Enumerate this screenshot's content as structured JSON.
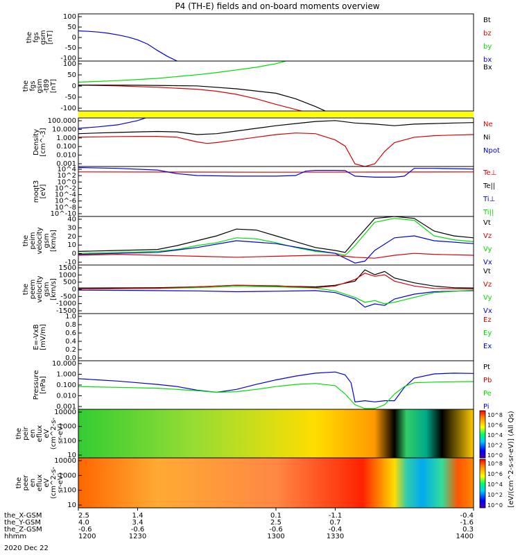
{
  "title": "P4 (TH-E) fields and on-board moments overview",
  "date_label": "2020 Dec 22",
  "colors": {
    "black": "#000000",
    "red": "#dd0000",
    "green": "#00dd00",
    "blue": "#0000dd",
    "yellow": "#ffff00"
  },
  "chart_data": [
    {
      "type": "line",
      "name": "fgs_gsm",
      "ylabel": [
        "the",
        "fgs",
        "gsm",
        "[nT]"
      ],
      "ylim": [
        -100,
        100
      ],
      "yticks": [
        "100",
        "50",
        "0",
        "-50",
        "-100"
      ],
      "legend": [
        {
          "label": "Bt",
          "color": "#000000"
        },
        {
          "label": "bz",
          "color": "#dd0000"
        },
        {
          "label": "by",
          "color": "#00dd00"
        },
        {
          "label": "bx",
          "color": "#0000dd"
        }
      ],
      "series": [
        {
          "name": "bx",
          "color": "#0000dd",
          "x": [
            1200,
            1205,
            1210,
            1215,
            1220,
            1225,
            1230,
            1235,
            1240,
            1245,
            1250
          ],
          "y": [
            28,
            26,
            23,
            18,
            11,
            2,
            -10,
            -28,
            -55,
            -80,
            -100
          ]
        }
      ]
    },
    {
      "type": "line",
      "name": "fgs_gsm_t89",
      "ylabel": [
        "the",
        "fgs",
        "gsm",
        "-t89",
        "[nT]"
      ],
      "ylim": [
        -125,
        100
      ],
      "yticks": [
        "100",
        "50",
        "0",
        "-50",
        "-100"
      ],
      "legend": [
        {
          "label": "Bx",
          "color": "#000000"
        }
      ],
      "series": [
        {
          "name": "green",
          "color": "#00dd00",
          "x": [
            1200,
            1210,
            1220,
            1230,
            1240,
            1250,
            1260,
            1270,
            1280,
            1290,
            1300,
            1305
          ],
          "y": [
            5,
            8,
            12,
            17,
            22,
            30,
            38,
            48,
            60,
            72,
            88,
            100
          ]
        },
        {
          "name": "red",
          "color": "#dd0000",
          "x": [
            1200,
            1220,
            1240,
            1260,
            1270,
            1280,
            1290,
            1300,
            1310,
            1313
          ],
          "y": [
            -8,
            -12,
            -18,
            -27,
            -36,
            -50,
            -70,
            -95,
            -118,
            -125
          ]
        },
        {
          "name": "black",
          "color": "#000000",
          "x": [
            1200,
            1230,
            1260,
            1280,
            1300,
            1310,
            1320,
            1325
          ],
          "y": [
            -8,
            -9,
            -12,
            -25,
            -45,
            -70,
            -105,
            -125
          ]
        }
      ]
    },
    {
      "type": "line",
      "name": "density",
      "ylabel": [
        "Density",
        "[cm^-3]"
      ],
      "ylog": [
        0.001,
        300
      ],
      "yticks": [
        "100.000",
        "10.000",
        "1.000",
        "0.100",
        "0.010",
        "0.001"
      ],
      "legend": [
        {
          "label": "Ne",
          "color": "#dd0000"
        },
        {
          "label": "Ni",
          "color": "#000000"
        },
        {
          "label": "Npot",
          "color": "#0000dd"
        }
      ],
      "series": [
        {
          "name": "Ni",
          "color": "#000000",
          "x": [
            1200,
            1210,
            1220,
            1230,
            1240,
            1250,
            1260,
            1270,
            1280,
            1290,
            1300,
            1310,
            1320,
            1330,
            1340,
            1350,
            1360,
            1370,
            1380,
            1390,
            1400
          ],
          "y": [
            5,
            6,
            7,
            8,
            9,
            8,
            4,
            5,
            10,
            20,
            40,
            70,
            120,
            150,
            80,
            60,
            40,
            60,
            70,
            80,
            90
          ]
        },
        {
          "name": "Ne",
          "color": "#dd0000",
          "x": [
            1200,
            1210,
            1220,
            1230,
            1240,
            1250,
            1260,
            1265,
            1270,
            1280,
            1290,
            1300,
            1310,
            1320,
            1330,
            1335,
            1340,
            1345,
            1350,
            1355,
            1360,
            1370,
            1380,
            1390,
            1400
          ],
          "y": [
            2,
            2.2,
            2.4,
            2.5,
            2.5,
            2,
            0.6,
            0.4,
            0.5,
            1,
            2,
            4,
            6,
            5,
            1,
            0.2,
            0.002,
            0.001,
            0.002,
            0.05,
            0.5,
            2,
            3,
            3.5,
            4
          ]
        },
        {
          "name": "Npot",
          "color": "#0000dd",
          "x": [
            1200,
            1210,
            1220,
            1230,
            1234
          ],
          "y": [
            20,
            30,
            50,
            150,
            300
          ]
        }
      ]
    },
    {
      "type": "line",
      "name": "moqt3",
      "ylabel": [
        "moqt3",
        "[eV]"
      ],
      "ylog": [
        1e-10,
        10000.0
      ],
      "yticks": [
        "10^4",
        "10^2",
        "10^0",
        "10^-2",
        "10^-4",
        "10^-6",
        "10^-8",
        "10^-10"
      ],
      "legend": [
        {
          "label": "Te⊥",
          "color": "#dd0000"
        },
        {
          "label": "Te||",
          "color": "#000000"
        },
        {
          "label": "Ti⊥",
          "color": "#0000dd"
        },
        {
          "label": "Ti||",
          "color": "#00dd00"
        }
      ],
      "series": [
        {
          "name": "Te",
          "color": "#dd0000",
          "x": [
            1200,
            1250,
            1300,
            1350,
            1400
          ],
          "y": [
            300,
            280,
            260,
            280,
            300
          ]
        },
        {
          "name": "Ti",
          "color": "#0000dd",
          "x": [
            1200,
            1220,
            1240,
            1250,
            1260,
            1280,
            1300,
            1310,
            1315,
            1320,
            1330,
            1335,
            1340,
            1350,
            1360,
            1365,
            1370,
            1380,
            1400
          ],
          "y": [
            5000,
            3000,
            1000,
            100,
            30,
            20,
            20,
            30,
            500,
            800,
            800,
            700,
            20,
            10,
            10,
            20,
            3000,
            3000,
            2000
          ]
        }
      ]
    },
    {
      "type": "line",
      "name": "peim_velocity",
      "ylabel": [
        "the",
        "peim",
        "velocity",
        "gsm",
        "[km/s]"
      ],
      "ylim": [
        -10,
        40
      ],
      "yticks": [
        "40",
        "30",
        "20",
        "10",
        "0",
        "-10"
      ],
      "legend": [
        {
          "label": "Vt",
          "color": "#000000"
        },
        {
          "label": "Vz",
          "color": "#dd0000"
        },
        {
          "label": "Vy",
          "color": "#00dd00"
        },
        {
          "label": "Vx",
          "color": "#0000dd"
        }
      ],
      "series": [
        {
          "name": "Vt",
          "color": "#000000",
          "x": [
            1200,
            1220,
            1240,
            1250,
            1260,
            1270,
            1280,
            1290,
            1300,
            1310,
            1320,
            1330,
            1335,
            1340,
            1350,
            1360,
            1370,
            1380,
            1390,
            1400
          ],
          "y": [
            4,
            5,
            6,
            10,
            15,
            20,
            27,
            26,
            20,
            14,
            8,
            5,
            3,
            15,
            38,
            40,
            38,
            25,
            20,
            18
          ]
        },
        {
          "name": "Vy",
          "color": "#00dd00",
          "x": [
            1200,
            1220,
            1240,
            1250,
            1260,
            1270,
            1280,
            1290,
            1300,
            1310,
            1320,
            1330,
            1335,
            1340,
            1350,
            1360,
            1370,
            1380,
            1390,
            1400
          ],
          "y": [
            2,
            3,
            4,
            6,
            10,
            13,
            18,
            17,
            13,
            8,
            4,
            2,
            0,
            10,
            34,
            38,
            36,
            20,
            16,
            14
          ]
        },
        {
          "name": "Vx",
          "color": "#0000dd",
          "x": [
            1200,
            1220,
            1240,
            1260,
            1280,
            1300,
            1320,
            1330,
            1335,
            1340,
            1345,
            1350,
            1360,
            1370,
            1380,
            1400
          ],
          "y": [
            1,
            2,
            3,
            8,
            15,
            12,
            5,
            2,
            -3,
            -8,
            -6,
            5,
            18,
            20,
            15,
            12
          ]
        },
        {
          "name": "Vz",
          "color": "#dd0000",
          "x": [
            1200,
            1220,
            1240,
            1260,
            1280,
            1300,
            1320,
            1330,
            1340,
            1350,
            1360,
            1370,
            1380,
            1400
          ],
          "y": [
            0,
            1,
            0,
            -1,
            -2,
            -1,
            0,
            0,
            -2,
            -3,
            0,
            2,
            1,
            0
          ]
        }
      ]
    },
    {
      "type": "line",
      "name": "peem_velocity",
      "ylabel": [
        "the",
        "peem",
        "velocity",
        "gsm",
        "[km/s]"
      ],
      "ylim": [
        -1500,
        1500
      ],
      "yticks": [
        "1500",
        "1000",
        "500",
        "0",
        "-500",
        "-1000",
        "-1500"
      ],
      "legend": [
        {
          "label": "Vt",
          "color": "#000000"
        },
        {
          "label": "Vz",
          "color": "#dd0000"
        },
        {
          "label": "Vy",
          "color": "#00dd00"
        },
        {
          "label": "Vx",
          "color": "#0000dd"
        }
      ],
      "series": [
        {
          "name": "Vt",
          "color": "#000000",
          "x": [
            1200,
            1240,
            1260,
            1280,
            1300,
            1320,
            1330,
            1340,
            1345,
            1350,
            1355,
            1360,
            1370,
            1380,
            1390,
            1400
          ],
          "y": [
            80,
            100,
            150,
            250,
            200,
            150,
            250,
            500,
            1200,
            900,
            1100,
            700,
            400,
            200,
            100,
            80
          ]
        },
        {
          "name": "Vx",
          "color": "#0000dd",
          "x": [
            1200,
            1240,
            1260,
            1280,
            1300,
            1320,
            1330,
            1340,
            1345,
            1350,
            1355,
            1360,
            1370,
            1380,
            1400
          ],
          "y": [
            -50,
            -80,
            -100,
            -150,
            -120,
            -80,
            -200,
            -600,
            -1100,
            -900,
            -1000,
            -600,
            -300,
            -150,
            -80
          ]
        },
        {
          "name": "Vy",
          "color": "#00dd00",
          "x": [
            1200,
            1240,
            1260,
            1280,
            1300,
            1320,
            1330,
            1340,
            1345,
            1350,
            1355,
            1360,
            1370,
            1380,
            1400
          ],
          "y": [
            30,
            50,
            100,
            180,
            150,
            80,
            -100,
            -500,
            -800,
            -700,
            -900,
            -800,
            -500,
            -200,
            -50
          ]
        },
        {
          "name": "Vz",
          "color": "#dd0000",
          "x": [
            1200,
            1240,
            1260,
            1280,
            1300,
            1320,
            1330,
            1340,
            1345,
            1350,
            1355,
            1360,
            1370,
            1380,
            1400
          ],
          "y": [
            20,
            60,
            150,
            250,
            220,
            100,
            200,
            600,
            1000,
            800,
            900,
            500,
            200,
            50,
            20
          ]
        }
      ]
    },
    {
      "type": "line",
      "name": "efield",
      "ylabel": [
        "E=-VxB",
        "[mV/m]"
      ],
      "ylim": [
        0,
        1
      ],
      "yticks": [
        "1.0",
        "0.8",
        "0.6",
        "0.4",
        "0.2",
        "0.0"
      ],
      "legend": [
        {
          "label": "Ez",
          "color": "#dd0000"
        },
        {
          "label": "Ey",
          "color": "#00dd00"
        },
        {
          "label": "Ex",
          "color": "#0000dd"
        }
      ],
      "series": []
    },
    {
      "type": "line",
      "name": "pressure",
      "ylabel": [
        "Pressure",
        "[nPa]"
      ],
      "ylog": [
        0.0005,
        60
      ],
      "yticks": [
        "10.000",
        "1.000",
        "0.100",
        "0.010",
        "0.001"
      ],
      "legend": [
        {
          "label": "Pt",
          "color": "#000000"
        },
        {
          "label": "Pb",
          "color": "#dd0000"
        },
        {
          "label": "Pe",
          "color": "#00dd00"
        },
        {
          "label": "Pi",
          "color": "#0000dd"
        }
      ],
      "series": [
        {
          "name": "Pi",
          "color": "#0000dd",
          "x": [
            1200,
            1210,
            1220,
            1230,
            1240,
            1250,
            1260,
            1270,
            1280,
            1290,
            1300,
            1310,
            1320,
            1330,
            1335,
            1338,
            1340,
            1345,
            1350,
            1355,
            1360,
            1365,
            1370,
            1380,
            1390,
            1400
          ],
          "y": [
            0.8,
            0.6,
            0.45,
            0.3,
            0.2,
            0.12,
            0.05,
            0.03,
            0.06,
            0.2,
            0.6,
            1.5,
            3,
            4,
            2,
            0.3,
            0.003,
            0.004,
            0.003,
            0.004,
            0.004,
            0.1,
            0.9,
            2.5,
            3,
            2.8
          ]
        },
        {
          "name": "Pe",
          "color": "#00dd00",
          "x": [
            1200,
            1220,
            1240,
            1260,
            1270,
            1280,
            1290,
            1300,
            1310,
            1320,
            1330,
            1335,
            1340,
            1345,
            1350,
            1355,
            1360,
            1365,
            1370,
            1380,
            1390,
            1400
          ],
          "y": [
            0.12,
            0.1,
            0.08,
            0.045,
            0.03,
            0.035,
            0.06,
            0.12,
            0.2,
            0.25,
            0.15,
            0.02,
            0.0015,
            0.0006,
            0.0006,
            0.0015,
            0.02,
            0.12,
            0.3,
            0.35,
            0.38,
            0.4
          ]
        }
      ]
    },
    {
      "type": "heatmap",
      "name": "peir_en_eflux",
      "ylabel": [
        "the",
        "peir",
        "en",
        "eflux",
        "eV",
        "(cm^2-s-",
        "sr-eV)"
      ],
      "ylog": [
        5,
        30000
      ],
      "yticks": [
        "10000",
        "1000",
        "100",
        "10"
      ]
    },
    {
      "type": "heatmap",
      "name": "peer_en_eflux",
      "ylabel": [
        "the",
        "peer",
        "en",
        "eflux",
        "eV",
        "(cm^2-s-",
        "sr-eV)"
      ],
      "ylog": [
        5,
        30000
      ],
      "yticks": [
        "10000",
        "1000",
        "100",
        "10"
      ]
    }
  ],
  "colorbar": {
    "label": "[eV/(cm^2-s-sr-eV)] (All Qs)",
    "ticks_top": [
      "10^8",
      "10^6",
      "10^4",
      "10^2",
      "10^0"
    ],
    "ticks_bottom": [
      "10^8",
      "10^6",
      "10^4",
      "10^2",
      "10^0"
    ]
  },
  "x_axis": {
    "xlim": [
      1200,
      1400
    ],
    "tick_values": [
      1200,
      1230,
      1300,
      1330,
      1400
    ],
    "rows": [
      {
        "label": "the_X-GSM",
        "values": [
          "2.5",
          "1.4",
          "0.1",
          "-1.1",
          "-0.4"
        ]
      },
      {
        "label": "the_Y-GSM",
        "values": [
          "4.0",
          "3.4",
          "2.5",
          "0.7",
          "-1.6"
        ]
      },
      {
        "label": "the_Z-GSM",
        "values": [
          "-0.6",
          "-0.6",
          "-0.6",
          "-0.4",
          "0.3"
        ]
      },
      {
        "label": "hhmm",
        "values": [
          "1200",
          "1230",
          "1300",
          "1330",
          "1400"
        ]
      }
    ]
  }
}
